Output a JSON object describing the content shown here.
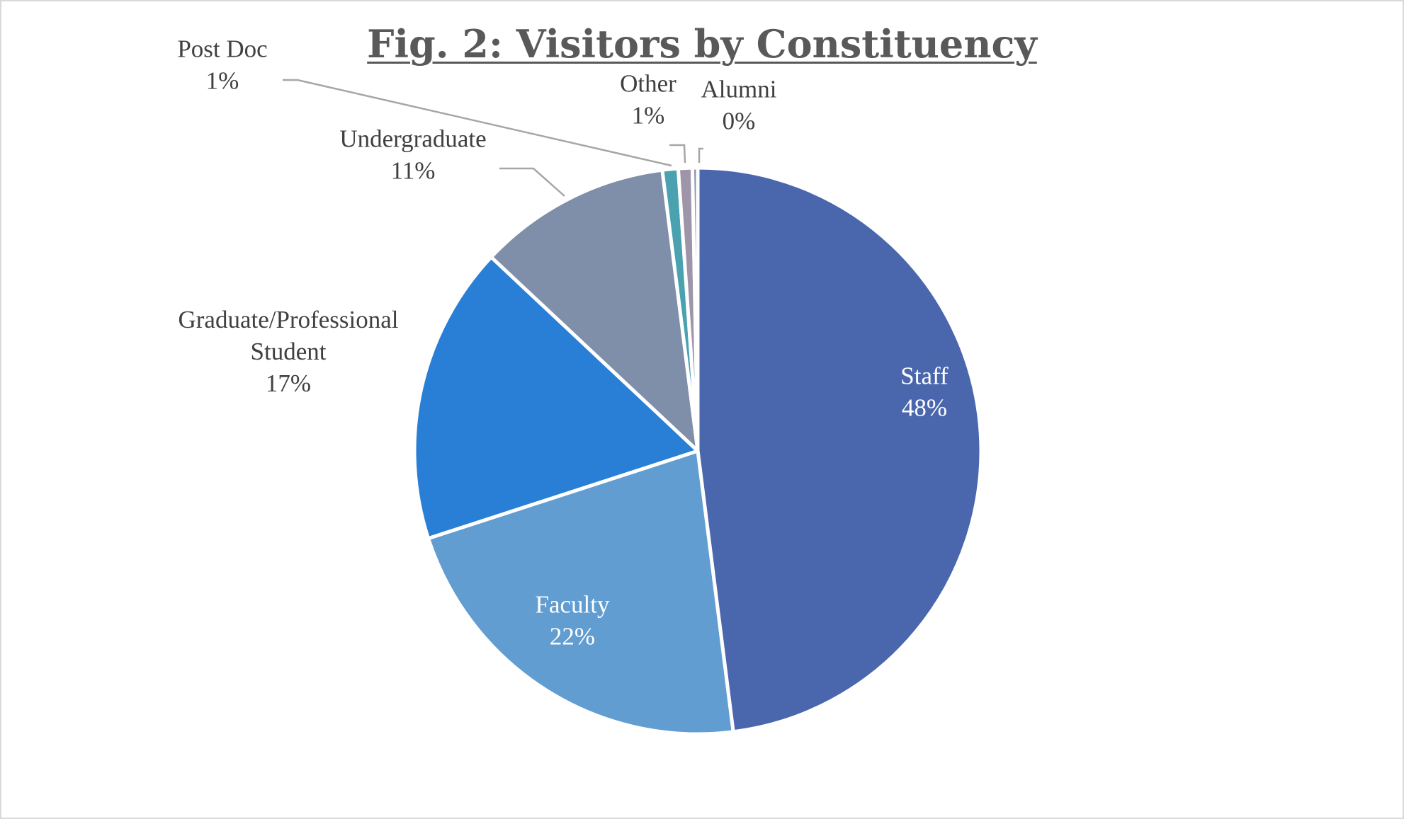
{
  "chart_data": {
    "type": "pie",
    "title": "Fig. 2: Visitors by Constituency",
    "start_angle_deg": 0,
    "direction": "clockwise",
    "slices": [
      {
        "label": "Staff",
        "value": 48,
        "display": "48%",
        "color": "#4a66ad",
        "label_color": "#ffffff",
        "label_position": "inside",
        "label_lines": [
          "Staff"
        ]
      },
      {
        "label": "Faculty",
        "value": 22,
        "display": "22%",
        "color": "#629dd1",
        "label_color": "#ffffff",
        "label_position": "inside",
        "label_lines": [
          "Faculty"
        ]
      },
      {
        "label": "Graduate/Professional Student",
        "value": 17,
        "display": "17%",
        "color": "#297fd5",
        "label_color": "#404040",
        "label_position": "outside",
        "label_lines": [
          "Graduate/Professional",
          "Student"
        ]
      },
      {
        "label": "Undergraduate",
        "value": 11,
        "display": "11%",
        "color": "#7f8fa9",
        "label_color": "#404040",
        "label_position": "outside-leader",
        "label_lines": [
          "Undergraduate"
        ]
      },
      {
        "label": "Post Doc",
        "value": 0.9,
        "display": "1%",
        "color": "#4aa1b0",
        "label_color": "#404040",
        "label_position": "outside-leader",
        "label_lines": [
          "Post Doc"
        ]
      },
      {
        "label": "Other",
        "value": 0.8,
        "display": "1%",
        "color": "#9e95a8",
        "label_color": "#404040",
        "label_position": "outside-leader",
        "label_lines": [
          "Other"
        ]
      },
      {
        "label": "Alumni",
        "value": 0.3,
        "display": "0%",
        "color": "#8a96a8",
        "label_color": "#404040",
        "label_position": "outside-leader",
        "label_lines": [
          "Alumni"
        ]
      }
    ],
    "legend": "none"
  }
}
